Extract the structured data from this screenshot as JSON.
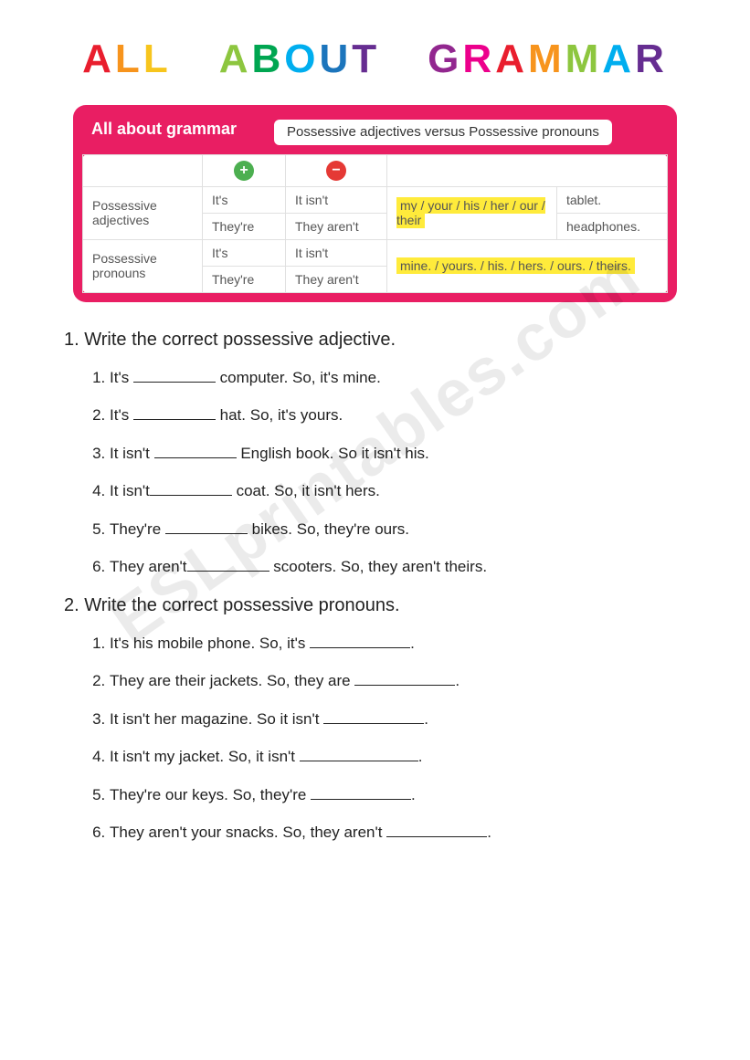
{
  "title": {
    "letters": [
      "A",
      "L",
      "L",
      " ",
      "A",
      "B",
      "O",
      "U",
      "T",
      " ",
      "G",
      "R",
      "A",
      "M",
      "M",
      "A",
      "R"
    ],
    "colors": [
      "c0",
      "c1",
      "c2",
      "",
      "c3",
      "c4",
      "c5",
      "c6",
      "c7",
      "",
      "c8",
      "c9",
      "c0",
      "c1",
      "c3",
      "c5",
      "c7"
    ]
  },
  "box": {
    "header_title": "All about grammar",
    "header_sub": "Possessive adjectives versus Possessive pronouns",
    "table": {
      "rows": [
        {
          "label": "Possessive adjectives",
          "pos": "It's",
          "neg": "It isn't",
          "examples": "my / your / his / her / our / their",
          "obj": "tablet.",
          "rowspan": true,
          "pos2": "They're",
          "neg2": "They aren't",
          "obj2": "headphones."
        },
        {
          "label": "Possessive pronouns",
          "pos": "It's",
          "neg": "It isn't",
          "examples": "mine. / yours. / his. / hers. / ours. / theirs.",
          "obj": "",
          "rowspan": true,
          "pos2": "They're",
          "neg2": "They aren't"
        }
      ]
    }
  },
  "section1": {
    "title": "1. Write the correct possessive adjective.",
    "items": [
      {
        "pre": "It's ",
        "post": " computer. So, it's mine.",
        "bw": "w90"
      },
      {
        "pre": "It's ",
        "post": " hat. So, it's yours.",
        "bw": "w90"
      },
      {
        "pre": "It isn't ",
        "post": " English book. So it isn't his.",
        "bw": "w90"
      },
      {
        "pre": "It isn't",
        "post": " coat. So, it isn't hers.",
        "bw": "w90"
      },
      {
        "pre": "They're ",
        "post": " bikes. So, they're ours.",
        "bw": "w90"
      },
      {
        "pre": "They aren't",
        "post": " scooters. So, they aren't theirs.",
        "bw": "w90"
      }
    ]
  },
  "section2": {
    "title": "2. Write the correct possessive pronouns.",
    "items": [
      {
        "pre": "It's his mobile phone. So, it's ",
        "post": ".",
        "bw": "w110"
      },
      {
        "pre": "They are their jackets. So, they are  ",
        "post": ".",
        "bw": "w110"
      },
      {
        "pre": "It isn't her magazine. So it isn't ",
        "post": ".",
        "bw": "w110"
      },
      {
        "pre": "It isn't my jacket. So, it isn't ",
        "post": ".",
        "bw": "w130"
      },
      {
        "pre": "They're our keys. So, they're ",
        "post": ".",
        "bw": "w110"
      },
      {
        "pre": "They aren't your snacks. So, they aren't ",
        "post": ".",
        "bw": "w110"
      }
    ]
  },
  "watermark": "ESLprintables.com"
}
